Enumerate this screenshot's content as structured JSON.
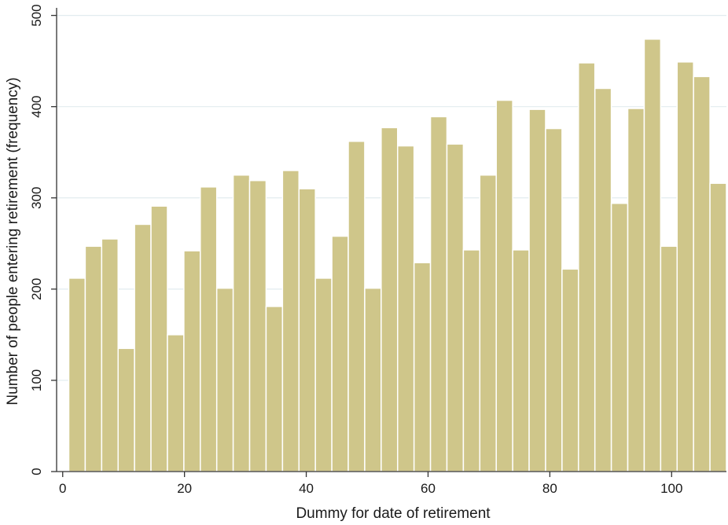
{
  "chart_data": {
    "type": "bar",
    "title": "",
    "xlabel": "Dummy for date of retirement",
    "ylabel": "Number of people entering retirement (frequency)",
    "xlim": [
      -1,
      109
    ],
    "ylim": [
      0,
      510
    ],
    "bin_width": 2.7,
    "x_ticks": [
      0,
      20,
      40,
      60,
      80,
      100
    ],
    "y_ticks": [
      0,
      100,
      200,
      300,
      400,
      500
    ],
    "grid": "horizontal",
    "legend": "none",
    "colors": {
      "bar_fill": "#cfc68a",
      "bar_edge": "#ffffff",
      "grid": "#e2ecef",
      "axis": "#333333"
    },
    "x": [
      1.0,
      3.7,
      6.4,
      9.1,
      11.8,
      14.5,
      17.2,
      19.9,
      22.6,
      25.3,
      28.0,
      30.7,
      33.4,
      36.1,
      38.8,
      41.5,
      44.2,
      46.9,
      49.6,
      52.3,
      55.0,
      57.7,
      60.4,
      63.1,
      65.8,
      68.5,
      71.2,
      73.9,
      76.6,
      79.3,
      82.0,
      84.7,
      87.4,
      90.1,
      92.8,
      95.5,
      98.2,
      100.9,
      103.6,
      106.3
    ],
    "values": [
      212,
      247,
      255,
      135,
      271,
      291,
      150,
      242,
      312,
      201,
      325,
      319,
      181,
      330,
      310,
      212,
      258,
      362,
      201,
      377,
      357,
      229,
      389,
      359,
      243,
      325,
      407,
      243,
      397,
      376,
      222,
      448,
      420,
      294,
      398,
      474,
      247,
      449,
      433,
      316
    ]
  }
}
